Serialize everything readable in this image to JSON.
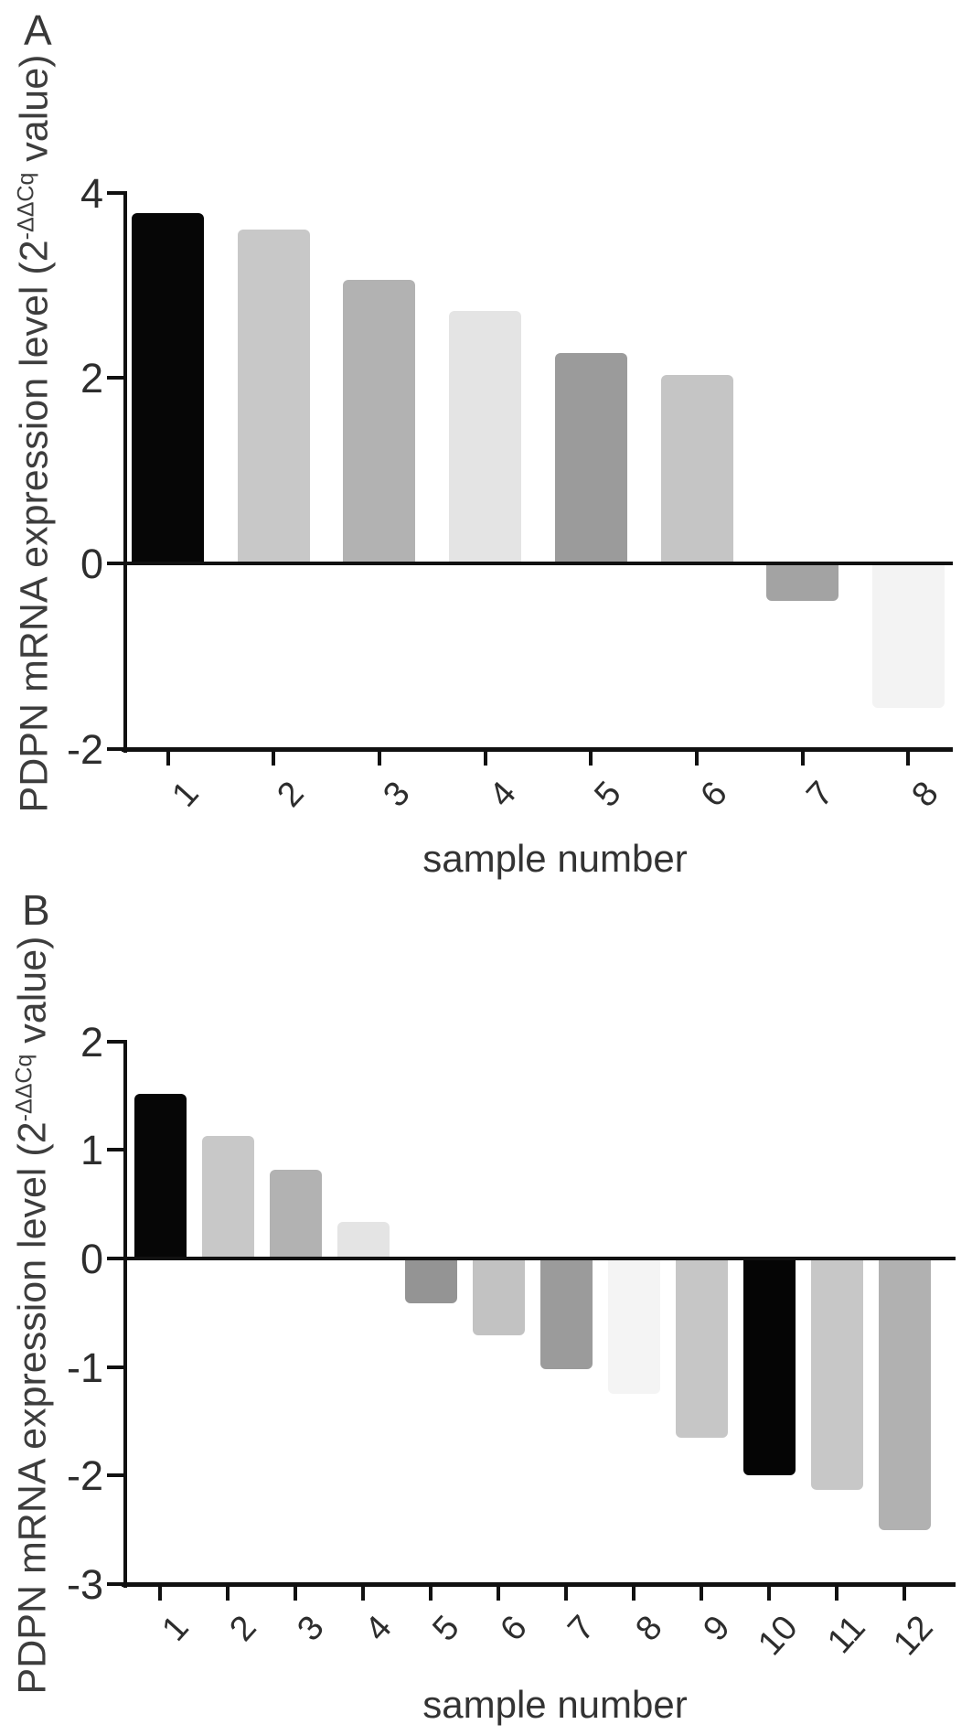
{
  "figure": {
    "background": "#ffffff",
    "axis_color": "#111111",
    "text_color": "#333333"
  },
  "panels": [
    {
      "letter": "A",
      "y_label_prefix": "PDPN mRNA expression level (2",
      "y_label_sup": "-ΔΔCq",
      "y_label_suffix": " value)",
      "x_label": "sample number"
    },
    {
      "letter": "B",
      "y_label_prefix": "PDPN mRNA expression level (2",
      "y_label_sup": "-ΔΔCq",
      "y_label_suffix": " value)",
      "x_label": "sample number"
    }
  ],
  "chart_data": [
    {
      "type": "bar",
      "panel": "A",
      "title": "",
      "xlabel": "sample number",
      "ylabel": "PDPN mRNA expression level (2^-ΔΔCq value)",
      "categories": [
        "1",
        "2",
        "3",
        "4",
        "5",
        "6",
        "7",
        "8"
      ],
      "values": [
        3.78,
        3.6,
        3.06,
        2.72,
        2.27,
        2.03,
        -0.4,
        -1.56
      ],
      "bar_colors": [
        "#060606",
        "#c8c8c8",
        "#b2b2b2",
        "#e4e4e4",
        "#9b9b9b",
        "#c5c5c5",
        "#a3a3a3",
        "#f3f3f3"
      ],
      "ylim": [
        -2,
        4
      ],
      "yticks": [
        4,
        2,
        0,
        -2
      ],
      "baseline": 0,
      "grid": false,
      "legend": "none"
    },
    {
      "type": "bar",
      "panel": "B",
      "title": "",
      "xlabel": "sample number",
      "ylabel": "PDPN mRNA expression level (2^-ΔΔCq value)",
      "categories": [
        "1",
        "2",
        "3",
        "4",
        "5",
        "6",
        "7",
        "8",
        "9",
        "10",
        "11",
        "12"
      ],
      "values": [
        1.52,
        1.13,
        0.82,
        0.34,
        -0.41,
        -0.71,
        -1.02,
        -1.25,
        -1.65,
        -2.0,
        -2.13,
        -2.5
      ],
      "bar_colors": [
        "#060606",
        "#c8c8c8",
        "#b2b2b2",
        "#e4e4e4",
        "#949494",
        "#c2c2c2",
        "#9b9b9b",
        "#f4f4f4",
        "#c6c6c6",
        "#050505",
        "#c7c7c7",
        "#b1b1b1"
      ],
      "ylim": [
        -3,
        2
      ],
      "yticks": [
        2,
        1,
        0,
        -1,
        -2,
        -3
      ],
      "baseline": 0,
      "grid": false,
      "legend": "none"
    }
  ]
}
